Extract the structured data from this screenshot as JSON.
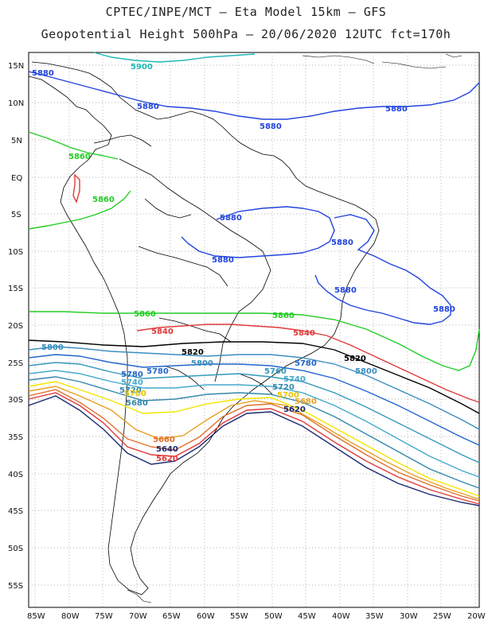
{
  "header": {
    "line1": "CPTEC/INPE/MCT –  Eta Model 15km – GFS",
    "line2": "Geopotential Height 500hPa – 20/06/2020 12UTC fct=170h"
  },
  "axes": {
    "lat_ticks": [
      "15N",
      "10N",
      "5N",
      "EQ",
      "5S",
      "10S",
      "15S",
      "20S",
      "25S",
      "30S",
      "35S",
      "40S",
      "45S",
      "50S",
      "55S"
    ],
    "lon_ticks": [
      "85W",
      "80W",
      "75W",
      "70W",
      "65W",
      "60W",
      "55W",
      "50W",
      "45W",
      "40W",
      "35W",
      "30W",
      "25W",
      "20W"
    ]
  },
  "colors": {
    "c5900": "#22b8b8",
    "c5880": "#2244dd",
    "c5860": "#22cc22",
    "c5840": "#e03a3a",
    "c5820": "#000000",
    "c5800": "#3a8ec0",
    "c5780": "#2266cc",
    "c5760": "#3399bb",
    "c5740": "#44aacc",
    "c5720": "#3388aa",
    "c5700": "#f2e600",
    "c5680": "#e8a020",
    "c5660": "#e0702a",
    "c5640": "#e03a3a",
    "c5620": "#1a2a70",
    "grid": "#9a9a9a",
    "coast": "#000000"
  },
  "contour_labels": {
    "5900": "5900",
    "5880": "5880",
    "5860": "5860",
    "5840": "5840",
    "5820": "5820",
    "5800": "5800",
    "5780": "5780",
    "5760": "5760",
    "5740": "5740",
    "5720": "5720",
    "5700": "5700",
    "5680": "5680",
    "5660": "5660",
    "5640": "5640",
    "5620": "5620"
  }
}
